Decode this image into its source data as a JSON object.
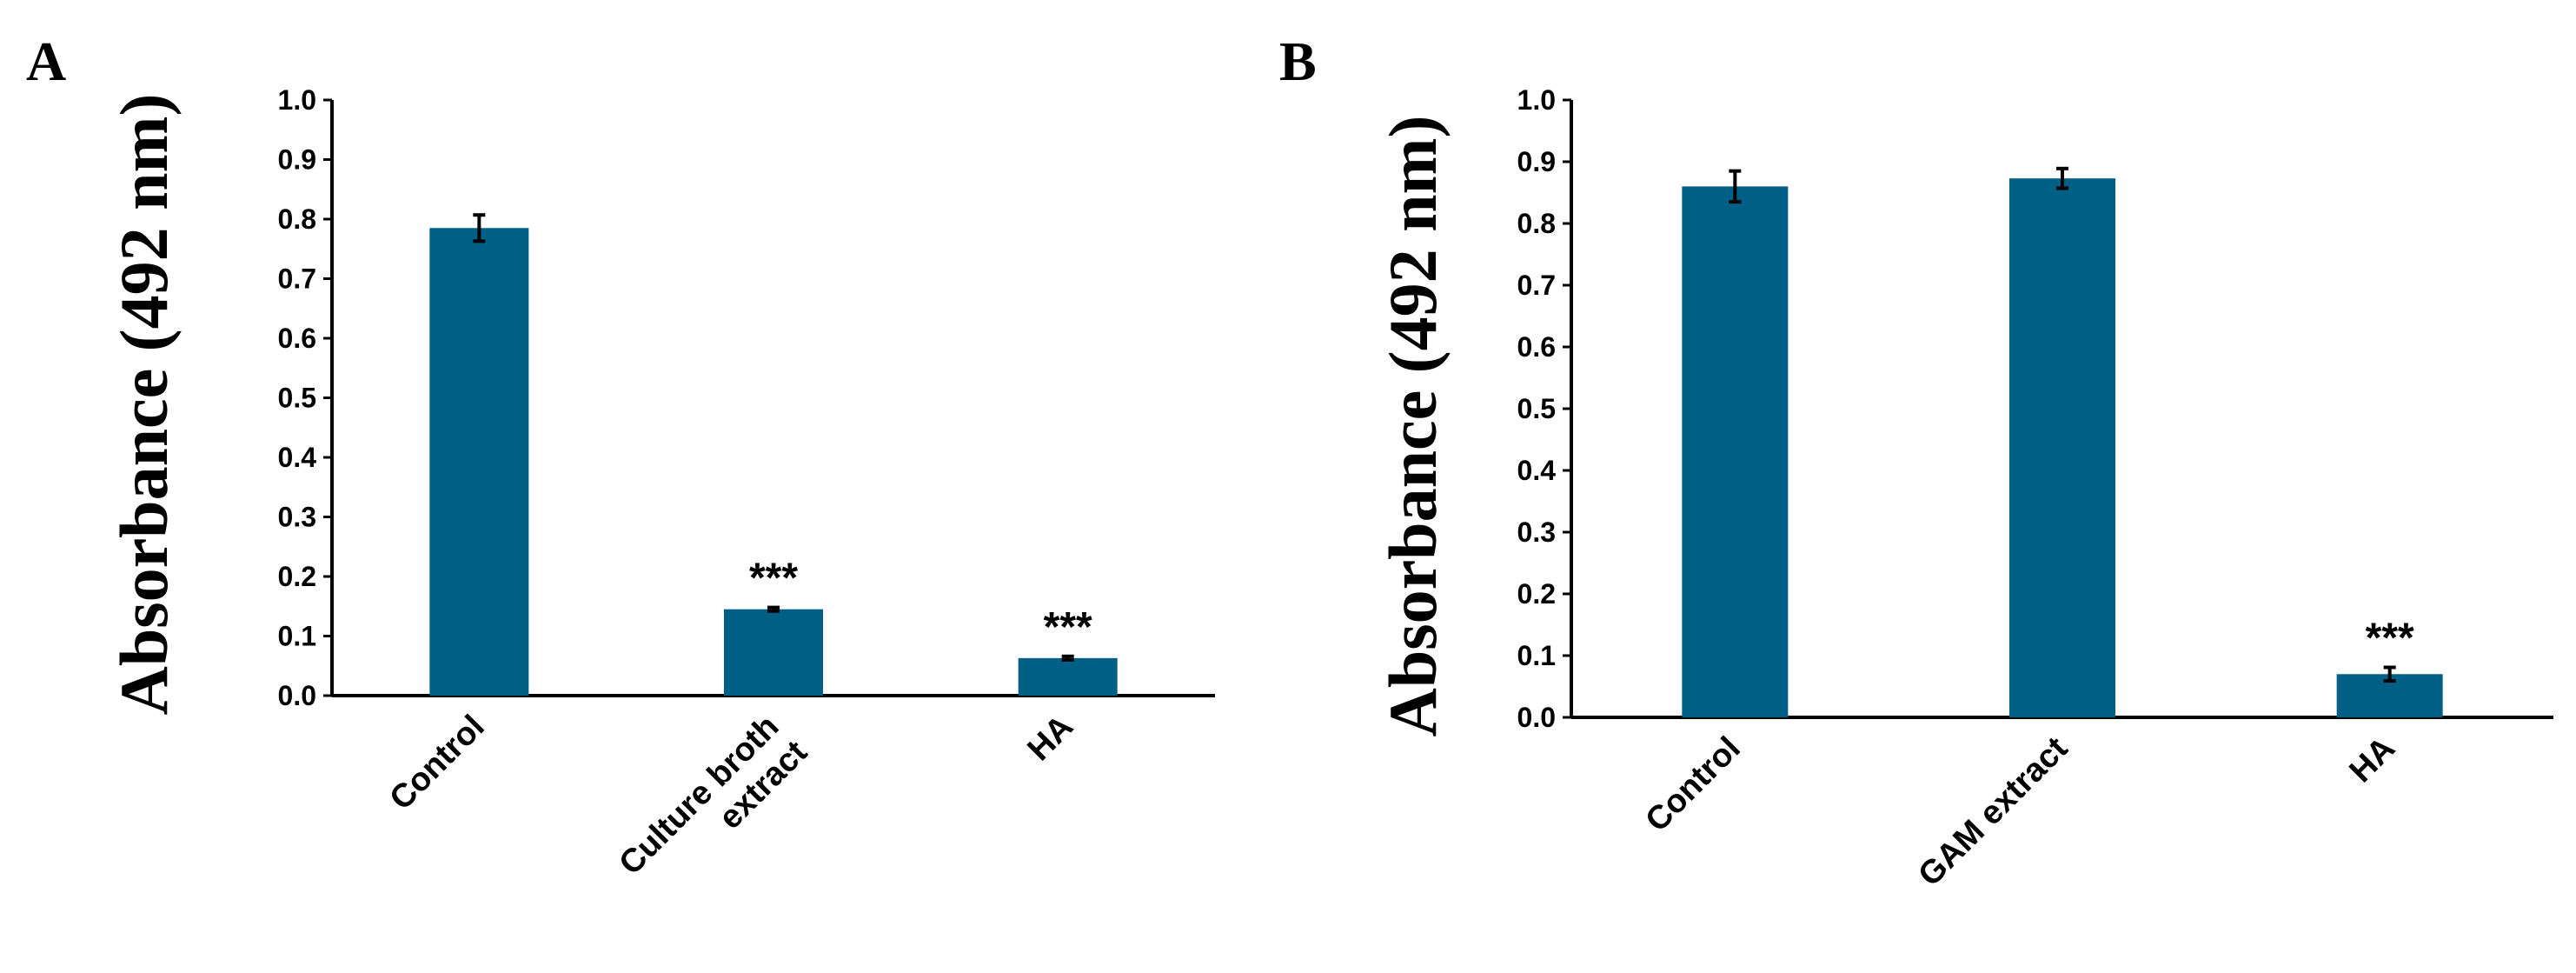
{
  "chart_data": [
    {
      "type": "bar",
      "panel_label": "A",
      "ylabel": "Absorbance (492 nm)",
      "xlabel": "",
      "ylim": [
        0,
        1.0
      ],
      "yticks": [
        "0.0",
        "0.1",
        "0.2",
        "0.3",
        "0.4",
        "0.5",
        "0.6",
        "0.7",
        "0.8",
        "0.9",
        "1.0"
      ],
      "grid": false,
      "color": "#005F85",
      "categories": [
        [
          "Control"
        ],
        [
          "Culture broth",
          "extract"
        ],
        [
          "HA"
        ]
      ],
      "values": [
        0.785,
        0.145,
        0.063
      ],
      "errors": [
        0.022,
        0.003,
        0.003
      ],
      "annotations": [
        "",
        "***",
        "***"
      ]
    },
    {
      "type": "bar",
      "panel_label": "B",
      "ylabel": "Absorbance (492 nm)",
      "xlabel": "",
      "ylim": [
        0,
        1.0
      ],
      "yticks": [
        "0.0",
        "0.1",
        "0.2",
        "0.3",
        "0.4",
        "0.5",
        "0.6",
        "0.7",
        "0.8",
        "0.9",
        "1.0"
      ],
      "grid": false,
      "color": "#005F85",
      "categories": [
        [
          "Control"
        ],
        [
          "GAM extract"
        ],
        [
          "HA"
        ]
      ],
      "values": [
        0.86,
        0.873,
        0.07
      ],
      "errors": [
        0.025,
        0.016,
        0.011
      ],
      "annotations": [
        "",
        "",
        "***"
      ]
    }
  ]
}
